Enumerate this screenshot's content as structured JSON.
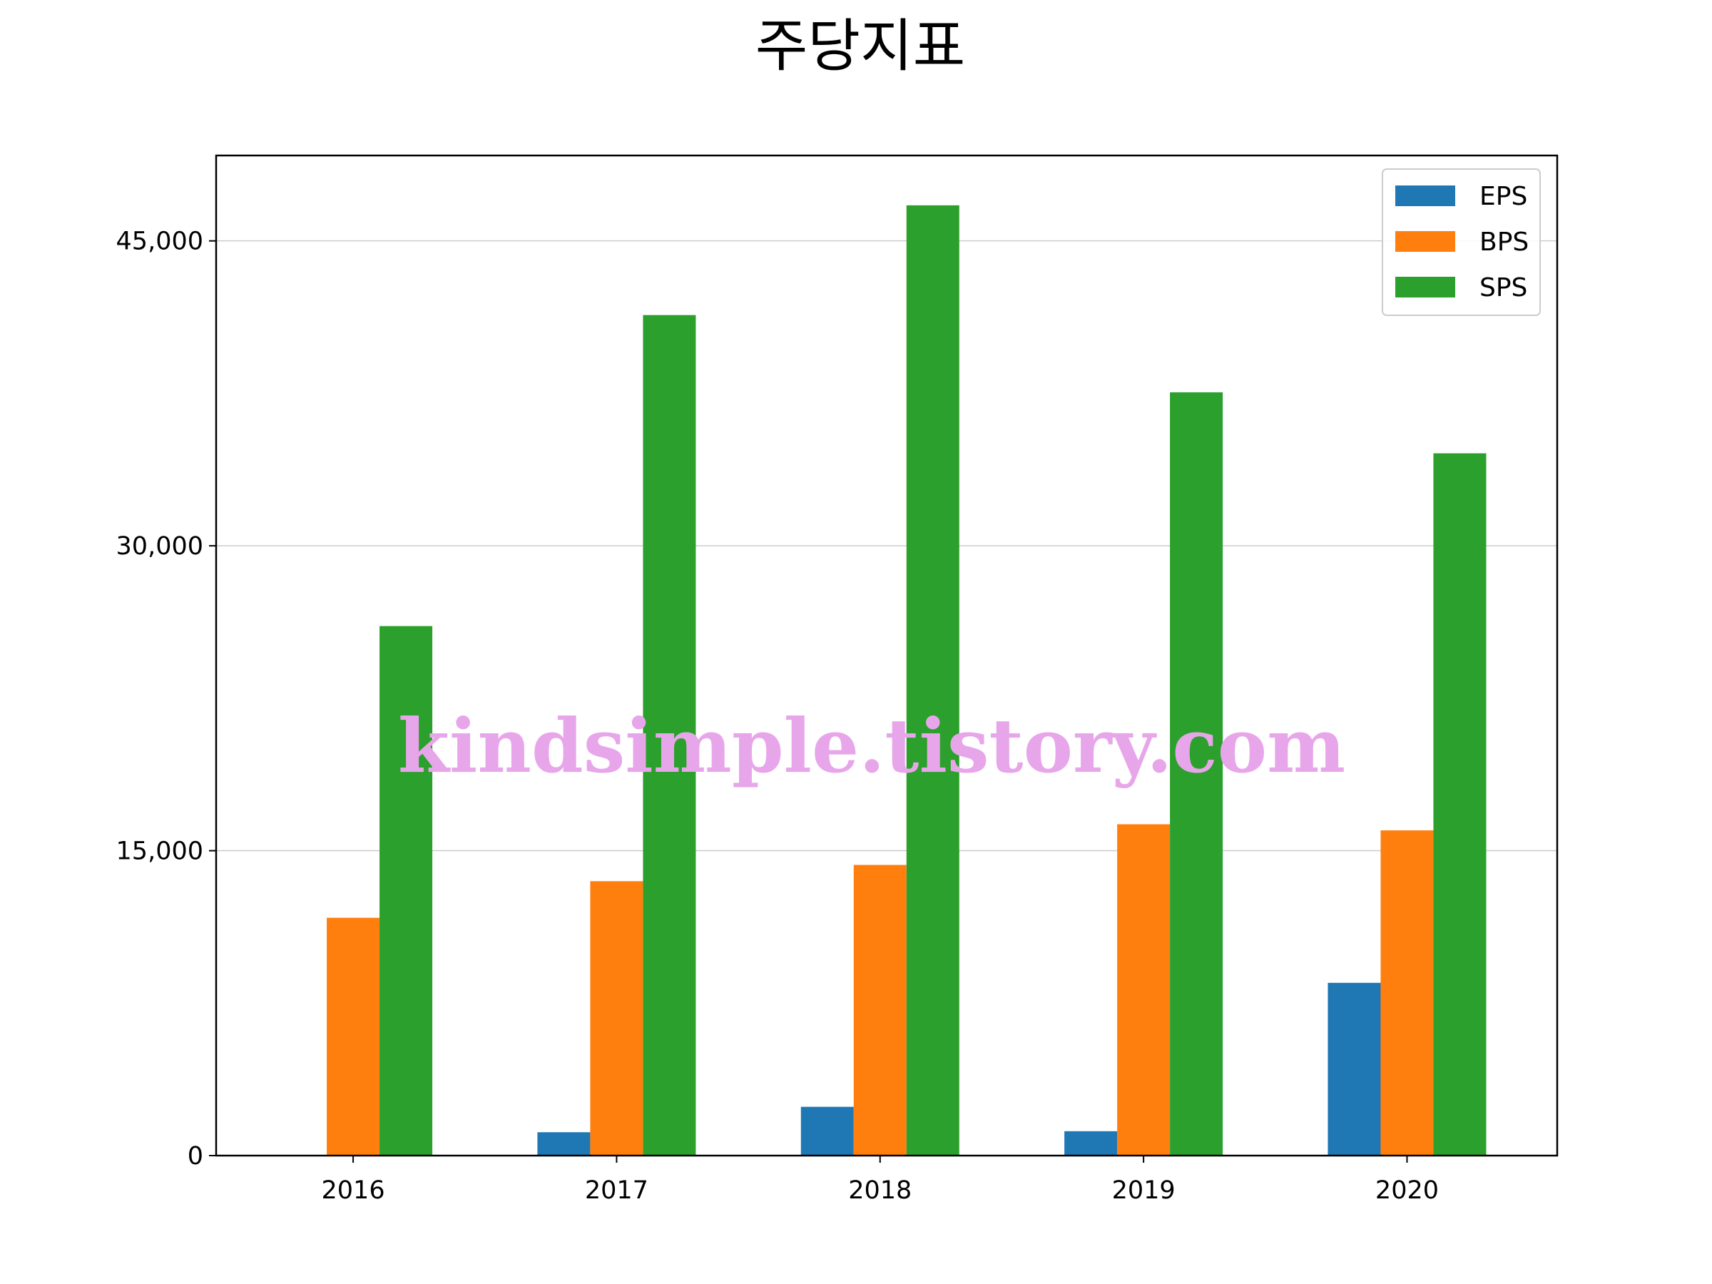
{
  "chart_data": {
    "type": "bar",
    "title": "주당지표",
    "categories": [
      "2016",
      "2017",
      "2018",
      "2019",
      "2020"
    ],
    "series": [
      {
        "name": "EPS",
        "color": "#1f77b4",
        "values": [
          0,
          1150,
          2400,
          1200,
          8500
        ]
      },
      {
        "name": "BPS",
        "color": "#ff7f0e",
        "values": [
          11700,
          13500,
          14300,
          16300,
          16000
        ]
      },
      {
        "name": "SPS",
        "color": "#2ca02c",
        "values": [
          26050,
          41350,
          46750,
          37550,
          34550
        ]
      }
    ],
    "yticks": [
      0,
      15000,
      30000,
      45000
    ],
    "ytick_labels": [
      "0",
      "15,000",
      "30,000",
      "45,000"
    ],
    "ylim": [
      0,
      49200
    ],
    "xlabel": "",
    "ylabel": "",
    "grid": "horizontal",
    "legend_position": "top-right"
  },
  "watermark": "kindsimple.tistory.com"
}
